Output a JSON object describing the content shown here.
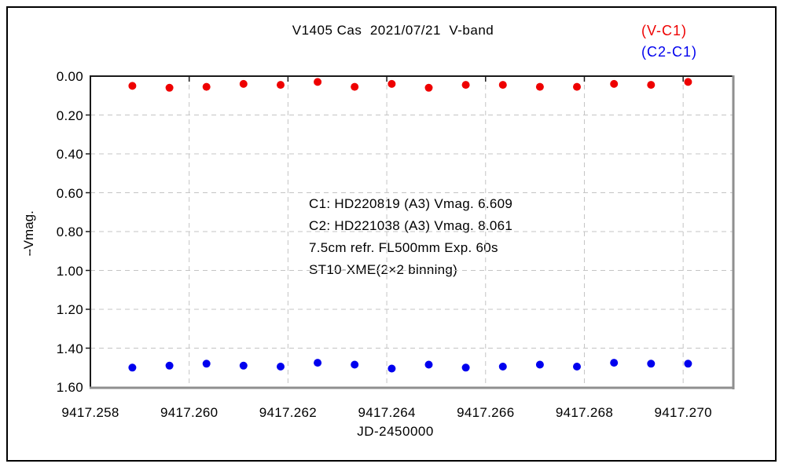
{
  "chart_data": {
    "type": "scatter",
    "title": "V1405 Cas  2021/07/21  V-band",
    "xlabel": "JD-2450000",
    "ylabel": "⧿Vmag.",
    "xlim": [
      9417.258,
      9417.271
    ],
    "ylim": [
      0.0,
      1.6
    ],
    "y_axis_inverted": true,
    "grid": "dashed",
    "legend_position": "top-right",
    "x_tick_labels": [
      "9417.258",
      "9417.260",
      "9417.262",
      "9417.264",
      "9417.266",
      "9417.268",
      "9417.270"
    ],
    "y_tick_labels": [
      "0.00",
      "0.20",
      "0.40",
      "0.60",
      "0.80",
      "1.00",
      "1.20",
      "1.40",
      "1.60"
    ],
    "x": [
      9417.25885,
      9417.2596,
      9417.26035,
      9417.2611,
      9417.26185,
      9417.2626,
      9417.26335,
      9417.2641,
      9417.26485,
      9417.2656,
      9417.26635,
      9417.2671,
      9417.26785,
      9417.2686,
      9417.26935,
      9417.2701
    ],
    "series": [
      {
        "name": "(V-C1)",
        "color": "#ee0000",
        "y": [
          0.05,
          0.06,
          0.055,
          0.04,
          0.045,
          0.03,
          0.055,
          0.04,
          0.06,
          0.045,
          0.045,
          0.055,
          0.055,
          0.04,
          0.045,
          0.03
        ]
      },
      {
        "name": "(C2-C1)",
        "color": "#0000ee",
        "y": [
          1.5,
          1.49,
          1.48,
          1.49,
          1.495,
          1.475,
          1.485,
          1.505,
          1.485,
          1.5,
          1.495,
          1.485,
          1.495,
          1.475,
          1.48,
          1.48
        ]
      }
    ],
    "annotation_lines": [
      "C1: HD220819 (A3) Vmag. 6.609",
      "C2: HD221038 (A3) Vmag. 8.061",
      "7.5cm refr. FL500mm Exp. 60s",
      "ST10-XME(2×2 binning)"
    ],
    "colors": {
      "grid": "#c4c4c4",
      "frame_dark": "#1a1a1a",
      "frame_shadow": "#8f8f8f",
      "marker_radius": 5
    }
  }
}
